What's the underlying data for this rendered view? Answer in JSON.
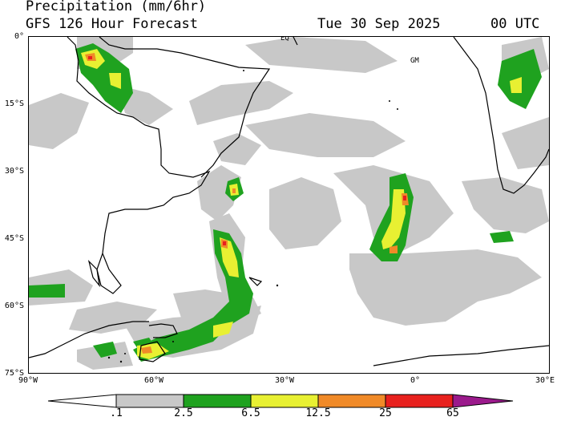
{
  "header": {
    "title": "Precipitation (mm/6hr)",
    "model": "GFS 126 Hour Forecast",
    "date": "Tue 30 Sep 2025",
    "time": "00 UTC"
  },
  "map": {
    "region": "South Atlantic",
    "lat_labels": [
      "0°",
      "15°S",
      "30°S",
      "45°S",
      "60°S",
      "75°S"
    ],
    "lon_labels": [
      "90°W",
      "60°W",
      "30°W",
      "0°",
      "30°E"
    ],
    "markers": {
      "eq": "EQ",
      "gm": "GM"
    }
  },
  "colorbar": {
    "labels": [
      ".1",
      "2.5",
      "6.5",
      "12.5",
      "25",
      "65"
    ],
    "colors": {
      "trace": "#c8c8c8",
      "light": "#1fa21f",
      "moderate": "#e8f032",
      "heavy": "#f08a28",
      "very_heavy": "#e8211e",
      "extreme": "#9b1a8c"
    }
  }
}
